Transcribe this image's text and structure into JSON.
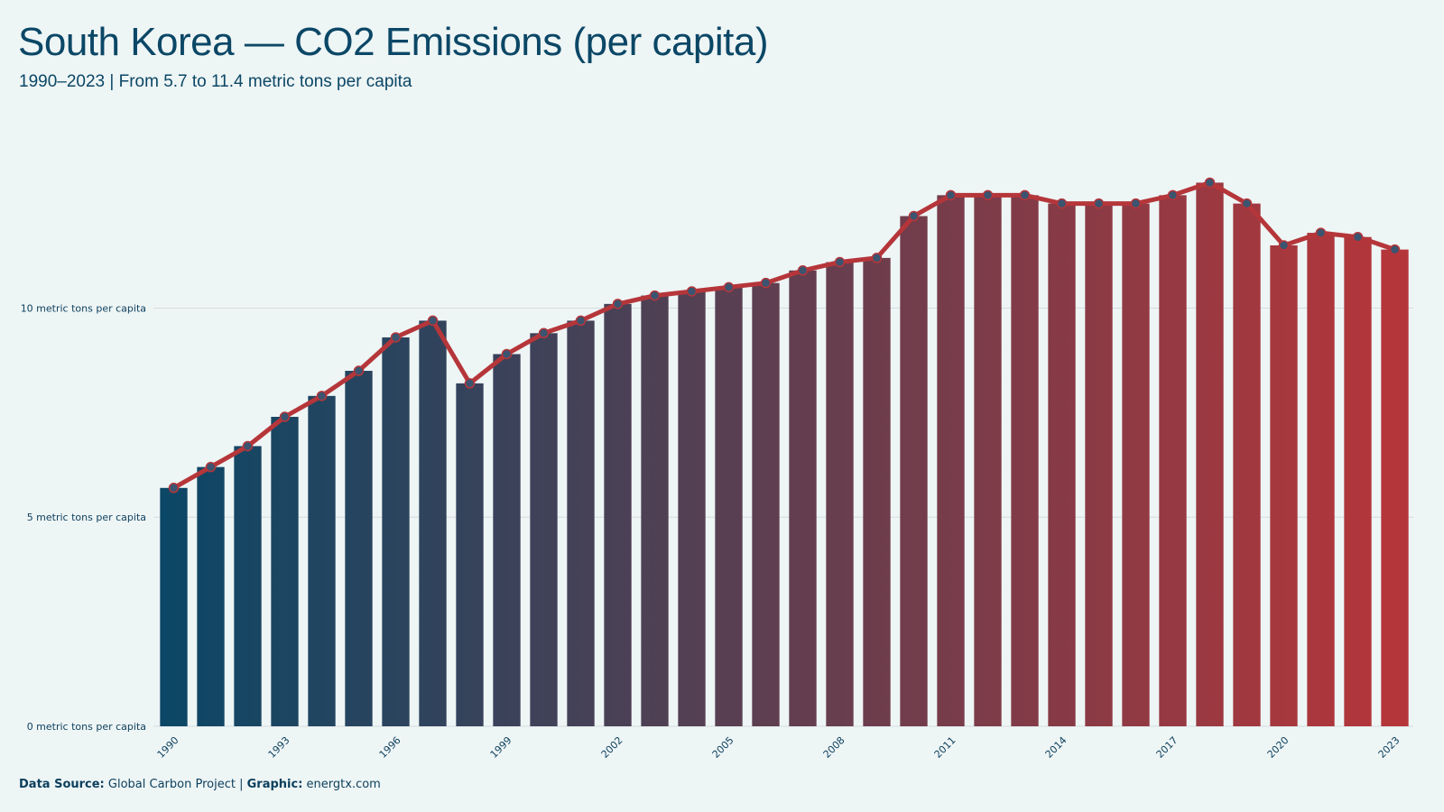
{
  "header": {
    "title": "South Korea — CO2 Emissions (per capita)",
    "subtitle": "1990–2023 | From 5.7 to 11.4 metric tons per capita"
  },
  "footer": {
    "source_label": "Data Source:",
    "source_value": "Global Carbon Project",
    "separator": "|",
    "graphic_label": "Graphic:",
    "graphic_value": "energtx.com"
  },
  "colors": {
    "background": "#eef5f5",
    "bar_start": "#0b4766",
    "bar_end": "#b5363a",
    "line": "#b5363a",
    "marker_fill": "#3b5470",
    "grid": "#d4dcdf"
  },
  "chart_data": {
    "type": "bar",
    "x": [
      1990,
      1991,
      1992,
      1993,
      1994,
      1995,
      1996,
      1997,
      1998,
      1999,
      2000,
      2001,
      2002,
      2003,
      2004,
      2005,
      2006,
      2007,
      2008,
      2009,
      2010,
      2011,
      2012,
      2013,
      2014,
      2015,
      2016,
      2017,
      2018,
      2019,
      2020,
      2021,
      2022,
      2023
    ],
    "x_tick_labels": [
      "1990",
      "1993",
      "1996",
      "1999",
      "2002",
      "2005",
      "2008",
      "2011",
      "2014",
      "2017",
      "2020",
      "2023"
    ],
    "values": [
      5.7,
      6.2,
      6.7,
      7.4,
      7.9,
      8.5,
      9.3,
      9.7,
      8.2,
      8.9,
      9.4,
      9.7,
      10.1,
      10.3,
      10.4,
      10.5,
      10.6,
      10.9,
      11.1,
      11.2,
      12.2,
      12.7,
      12.7,
      12.7,
      12.5,
      12.5,
      12.5,
      12.7,
      13.0,
      12.5,
      11.5,
      11.8,
      11.7,
      11.4
    ],
    "ylim": [
      0,
      13.7
    ],
    "y_ticks": [
      0,
      5,
      10
    ],
    "y_tick_labels": [
      "0 metric tons per capita",
      "5 metric tons per capita",
      "10 metric tons per capita"
    ],
    "overlay": "line-with-markers",
    "grid": "horizontal"
  }
}
